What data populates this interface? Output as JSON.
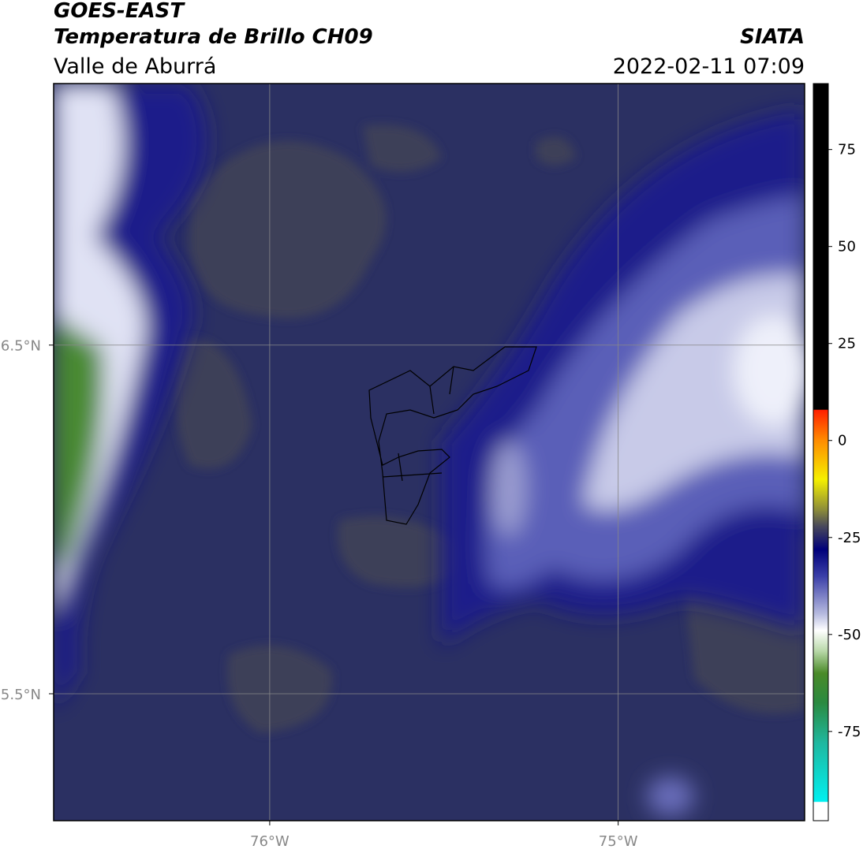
{
  "header": {
    "title": "GOES-EAST",
    "subtitle": "Temperatura de Brillo CH09",
    "region": "Valle de Aburrá",
    "source": "SIATA",
    "datetime": "2022-02-11 07:09"
  },
  "map": {
    "xlim": [
      -76.62,
      -74.465
    ],
    "ylim": [
      5.136,
      7.25
    ],
    "xticks": [
      {
        "value": -76,
        "label": "76°W"
      },
      {
        "value": -75,
        "label": "75°W"
      }
    ],
    "yticks": [
      {
        "value": 6.5,
        "label": "6.5°N"
      },
      {
        "value": 5.5,
        "label": "5.5°N"
      }
    ],
    "grid": true
  },
  "colorbar": {
    "lim": [
      -98,
      92
    ],
    "ticks": [
      75,
      50,
      25,
      0,
      -25,
      -50,
      -75
    ]
  }
}
